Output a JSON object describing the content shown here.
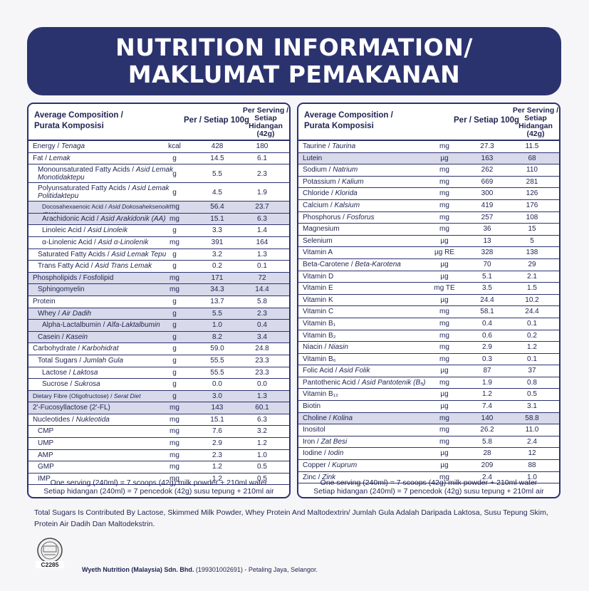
{
  "banner": {
    "line1": "NUTRITION INFORMATION/",
    "line2": "MAKLUMAT PEMAKANAN"
  },
  "table_header": {
    "composition_en": "Average Composition /",
    "composition_ms": "Purata Komposisi",
    "per100": "Per / Setiap 100g",
    "serving_l1": "Per Serving /",
    "serving_l2": "Setiap Hidangan",
    "serving_l3": "(42g)"
  },
  "left_rows": [
    {
      "name": "Energy / ",
      "ital": "Tenaga",
      "unit": "kcal",
      "v1": "428",
      "v2": "180",
      "hl": false,
      "b": false,
      "ind": 0
    },
    {
      "name": "Fat / ",
      "ital": "Lemak",
      "unit": "g",
      "v1": "14.5",
      "v2": "6.1",
      "hl": false,
      "b": false,
      "ind": 0
    },
    {
      "name": "Monounsaturated Fatty Acids / ",
      "ital": "Asid Lemak Monotidaktepu",
      "unit": "g",
      "v1": "5.5",
      "v2": "2.3",
      "hl": false,
      "b": false,
      "ind": 1,
      "tall": true
    },
    {
      "name": "Polyunsaturated Fatty Acids / ",
      "ital": "Asid Lemak Politidaktepu",
      "unit": "g",
      "v1": "4.5",
      "v2": "1.9",
      "hl": false,
      "b": false,
      "ind": 1,
      "tall": true
    },
    {
      "name": "Docosahexaenoic Acid / ",
      "ital": "Asid Dokosaheksenoik (DHA)",
      "unit": "mg",
      "v1": "56.4",
      "v2": "23.7",
      "hl": true,
      "b": false,
      "ind": 2,
      "small": true
    },
    {
      "name": "Arachidonic Acid / ",
      "ital": "Asid Arakidonik (AA)",
      "unit": "mg",
      "v1": "15.1",
      "v2": "6.3",
      "hl": true,
      "b": false,
      "ind": 2
    },
    {
      "name": "Linoleic Acid / ",
      "ital": "Asid Linoleik",
      "unit": "g",
      "v1": "3.3",
      "v2": "1.4",
      "hl": false,
      "b": false,
      "ind": 2
    },
    {
      "name": "α-Linolenic Acid / ",
      "ital": "Asid α-Linolenik",
      "unit": "mg",
      "v1": "391",
      "v2": "164",
      "hl": false,
      "b": false,
      "ind": 2
    },
    {
      "name": "Saturated Fatty Acids / ",
      "ital": "Asid Lemak Tepu",
      "unit": "g",
      "v1": "3.2",
      "v2": "1.3",
      "hl": false,
      "b": false,
      "ind": 1
    },
    {
      "name": "Trans Fatty Acid / ",
      "ital": "Asid Trans Lemak",
      "unit": "g",
      "v1": "0.2",
      "v2": "0.1",
      "hl": false,
      "b": false,
      "ind": 1
    },
    {
      "name": "Phospholipids / Fosfolipid",
      "ital": "",
      "unit": "mg",
      "v1": "171",
      "v2": "72",
      "hl": true,
      "b": false,
      "ind": 0
    },
    {
      "name": "Sphingomyelin",
      "ital": "",
      "unit": "mg",
      "v1": "34.3",
      "v2": "14.4",
      "hl": true,
      "b": false,
      "ind": 1
    },
    {
      "name": "Protein",
      "ital": "",
      "unit": "g",
      "v1": "13.7",
      "v2": "5.8",
      "hl": false,
      "b": false,
      "ind": 0
    },
    {
      "name": "Whey / ",
      "ital": "Air Dadih",
      "unit": "g",
      "v1": "5.5",
      "v2": "2.3",
      "hl": true,
      "b": false,
      "ind": 1
    },
    {
      "name": "Alpha-Lactalbumin / ",
      "ital": "Alfa-Laktalbumin",
      "unit": "g",
      "v1": "1.0",
      "v2": "0.4",
      "hl": true,
      "b": false,
      "ind": 2
    },
    {
      "name": "Casein / ",
      "ital": "Kasein",
      "unit": "g",
      "v1": "8.2",
      "v2": "3.4",
      "hl": true,
      "b": false,
      "ind": 1
    },
    {
      "name": "Carbohydrate / ",
      "ital": "Karbohidrat",
      "unit": "g",
      "v1": "59.0",
      "v2": "24.8",
      "hl": false,
      "b": false,
      "ind": 0
    },
    {
      "name": "Total Sugars / ",
      "ital": "Jumlah Gula",
      "unit": "g",
      "v1": "55.5",
      "v2": "23.3",
      "hl": false,
      "b": false,
      "ind": 1
    },
    {
      "name": "Lactose / ",
      "ital": "Laktosa",
      "unit": "g",
      "v1": "55.5",
      "v2": "23.3",
      "hl": false,
      "b": false,
      "ind": 2
    },
    {
      "name": "Sucrose / ",
      "ital": "Sukrosa",
      "unit": "g",
      "v1": "0.0",
      "v2": "0.0",
      "hl": false,
      "b": false,
      "ind": 2
    },
    {
      "name": "Dietary Fibre (Oligofructose) / ",
      "ital": "Serat Diet (Oligofruktosa)",
      "unit": "g",
      "v1": "3.0",
      "v2": "1.3",
      "hl": true,
      "b": false,
      "ind": 0,
      "small": true
    },
    {
      "name": "2'-Fucosyllactose (2'-FL)",
      "ital": "",
      "unit": "mg",
      "v1": "143",
      "v2": "60.1",
      "hl": true,
      "b": false,
      "ind": 0
    },
    {
      "name": "Nucleotides / ",
      "ital": "Nukleotida",
      "unit": "mg",
      "v1": "15.1",
      "v2": "6.3",
      "hl": false,
      "b": false,
      "ind": 0
    },
    {
      "name": "CMP",
      "ital": "",
      "unit": "mg",
      "v1": "7.6",
      "v2": "3.2",
      "hl": false,
      "b": false,
      "ind": 1
    },
    {
      "name": "UMP",
      "ital": "",
      "unit": "mg",
      "v1": "2.9",
      "v2": "1.2",
      "hl": false,
      "b": false,
      "ind": 1
    },
    {
      "name": "AMP",
      "ital": "",
      "unit": "mg",
      "v1": "2.3",
      "v2": "1.0",
      "hl": false,
      "b": false,
      "ind": 1
    },
    {
      "name": "GMP",
      "ital": "",
      "unit": "mg",
      "v1": "1.2",
      "v2": "0.5",
      "hl": false,
      "b": false,
      "ind": 1
    },
    {
      "name": "IMP",
      "ital": "",
      "unit": "mg",
      "v1": "1.2",
      "v2": "0.5",
      "hl": false,
      "b": false,
      "ind": 1
    }
  ],
  "right_rows": [
    {
      "name": "Taurine / ",
      "ital": "Taurina",
      "unit": "mg",
      "v1": "27.3",
      "v2": "11.5",
      "hl": false
    },
    {
      "name": "Lutein",
      "ital": "",
      "unit": "µg",
      "v1": "163",
      "v2": "68",
      "hl": true
    },
    {
      "name": "Sodium / ",
      "ital": "Natrium",
      "unit": "mg",
      "v1": "262",
      "v2": "110",
      "hl": false
    },
    {
      "name": "Potassium / ",
      "ital": "Kalium",
      "unit": "mg",
      "v1": "669",
      "v2": "281",
      "hl": false
    },
    {
      "name": "Chloride / ",
      "ital": "Klorida",
      "unit": "mg",
      "v1": "300",
      "v2": "126",
      "hl": false
    },
    {
      "name": "Calcium / ",
      "ital": "Kalsium",
      "unit": "mg",
      "v1": "419",
      "v2": "176",
      "hl": false
    },
    {
      "name": "Phosphorus / ",
      "ital": "Fosforus",
      "unit": "mg",
      "v1": "257",
      "v2": "108",
      "hl": false
    },
    {
      "name": "Magnesium",
      "ital": "",
      "unit": "mg",
      "v1": "36",
      "v2": "15",
      "hl": false
    },
    {
      "name": "Selenium",
      "ital": "",
      "unit": "µg",
      "v1": "13",
      "v2": "5",
      "hl": false
    },
    {
      "name": "Vitamin A",
      "ital": "",
      "unit": "µg RE",
      "v1": "328",
      "v2": "138",
      "hl": false
    },
    {
      "name": "Beta-Carotene / ",
      "ital": "Beta-Karotena",
      "unit": "µg",
      "v1": "70",
      "v2": "29",
      "hl": false
    },
    {
      "name": "Vitamin D",
      "ital": "",
      "unit": "µg",
      "v1": "5.1",
      "v2": "2.1",
      "hl": false
    },
    {
      "name": "Vitamin E",
      "ital": "",
      "unit": "mg TE",
      "v1": "3.5",
      "v2": "1.5",
      "hl": false
    },
    {
      "name": "Vitamin K",
      "ital": "",
      "unit": "µg",
      "v1": "24.4",
      "v2": "10.2",
      "hl": false
    },
    {
      "name": "Vitamin C",
      "ital": "",
      "unit": "mg",
      "v1": "58.1",
      "v2": "24.4",
      "hl": false
    },
    {
      "name": "Vitamin B₁",
      "ital": "",
      "unit": "mg",
      "v1": "0.4",
      "v2": "0.1",
      "hl": false
    },
    {
      "name": "Vitamin B₂",
      "ital": "",
      "unit": "mg",
      "v1": "0.6",
      "v2": "0.2",
      "hl": false
    },
    {
      "name": "Niacin / ",
      "ital": "Niasin",
      "unit": "mg",
      "v1": "2.9",
      "v2": "1.2",
      "hl": false
    },
    {
      "name": "Vitamin B₆",
      "ital": "",
      "unit": "mg",
      "v1": "0.3",
      "v2": "0.1",
      "hl": false
    },
    {
      "name": "Folic Acid / ",
      "ital": "Asid Folik",
      "unit": "µg",
      "v1": "87",
      "v2": "37",
      "hl": false
    },
    {
      "name": "Pantothenic Acid / ",
      "ital": "Asid Pantotenik (B₅)",
      "unit": "mg",
      "v1": "1.9",
      "v2": "0.8",
      "hl": false
    },
    {
      "name": "Vitamin B₁₂",
      "ital": "",
      "unit": "µg",
      "v1": "1.2",
      "v2": "0.5",
      "hl": false
    },
    {
      "name": "Biotin",
      "ital": "",
      "unit": "µg",
      "v1": "7.4",
      "v2": "3.1",
      "hl": false
    },
    {
      "name": "Choline / ",
      "ital": "Kolina",
      "unit": "mg",
      "v1": "140",
      "v2": "58.8",
      "hl": true
    },
    {
      "name": "Inositol",
      "ital": "",
      "unit": "mg",
      "v1": "26.2",
      "v2": "11.0",
      "hl": false
    },
    {
      "name": "Iron / ",
      "ital": "Zat Besi",
      "unit": "mg",
      "v1": "5.8",
      "v2": "2.4",
      "hl": false
    },
    {
      "name": "Iodine / ",
      "ital": "Iodin",
      "unit": "µg",
      "v1": "28",
      "v2": "12",
      "hl": false
    },
    {
      "name": "Copper / ",
      "ital": "Kuprum",
      "unit": "µg",
      "v1": "209",
      "v2": "88",
      "hl": false
    },
    {
      "name": "Zinc / ",
      "ital": "Zink",
      "unit": "mg",
      "v1": "2.4",
      "v2": "1.0",
      "hl": false
    }
  ],
  "serving_note_en": "One serving (240ml) = 7 scoops (42g) milk powder + 210ml water",
  "serving_note_ms": "Setiap hidangan (240ml) = 7 pencedok (42g) susu tepung + 210ml air",
  "sugar_note": "Total Sugars Is Contributed By Lactose, Skimmed Milk Powder, Whey Protein And Maltodextrin/ Jumlah Gula Adalah Daripada Laktosa, Susu Tepung Skim, Protein Air Dadih Dan Maltodekstrin.",
  "halal_code": "C2285",
  "company_name": "Wyeth Nutrition (Malaysia) Sdn. Bhd.",
  "company_reg": " (199301002691)",
  "company_location": " - Petaling Jaya, Selangor."
}
